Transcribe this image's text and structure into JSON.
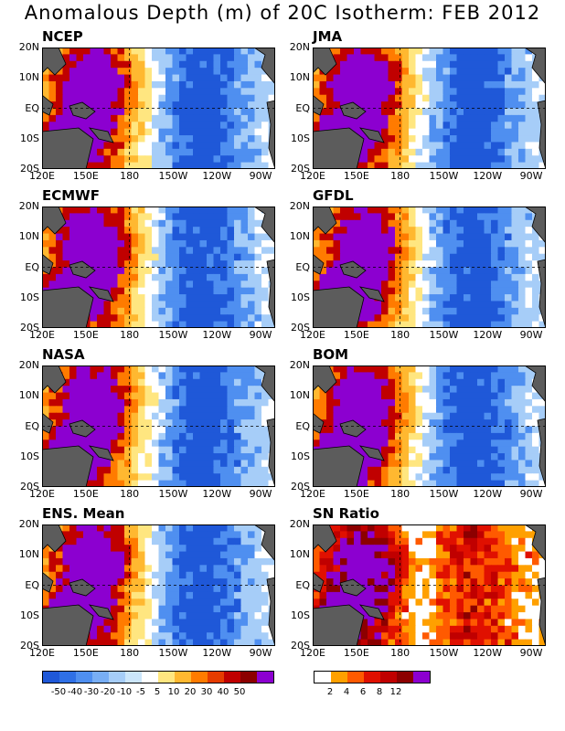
{
  "title": "Anomalous Depth (m) of 20C Isotherm: FEB 2012",
  "axes": {
    "lat_labels": [
      "20N",
      "10N",
      "EQ",
      "10S",
      "20S"
    ],
    "lon_labels": [
      "120E",
      "150E",
      "180",
      "150W",
      "120W",
      "90W"
    ]
  },
  "panels": [
    {
      "name": "NCEP"
    },
    {
      "name": "JMA"
    },
    {
      "name": "ECMWF"
    },
    {
      "name": "GFDL"
    },
    {
      "name": "NASA"
    },
    {
      "name": "BOM"
    },
    {
      "name": "ENS. Mean"
    },
    {
      "name": "SN Ratio"
    }
  ],
  "colorbar_left": {
    "labels": [
      "-50",
      "-40",
      "-30",
      "-20",
      "-10",
      "-5",
      "5",
      "10",
      "20",
      "30",
      "40",
      "50"
    ],
    "colors": [
      "#1f58d8",
      "#2f70e6",
      "#4f8ff0",
      "#78aef5",
      "#a6cdf8",
      "#cce6fb",
      "#ffffff",
      "#ffe680",
      "#ffb830",
      "#ff7b00",
      "#e63c00",
      "#c00000",
      "#8c0000",
      "#8c00d0"
    ]
  },
  "colorbar_right": {
    "labels": [
      "2",
      "4",
      "6",
      "8",
      "12"
    ],
    "colors": [
      "#ffffff",
      "#ffa000",
      "#ff5a00",
      "#e01000",
      "#c00000",
      "#8c0000",
      "#8c00d0"
    ]
  },
  "chart_data": {
    "type": "heatmap",
    "title": "Anomalous Depth (m) of 20C Isotherm: FEB 2012",
    "x_range": [
      "120E",
      "80W"
    ],
    "y_range": [
      "20S",
      "20N"
    ],
    "panels": [
      "NCEP",
      "JMA",
      "ECMWF",
      "GFDL",
      "NASA",
      "BOM",
      "ENS. Mean",
      "SN Ratio"
    ],
    "contour_levels_anomaly": [
      -50,
      -40,
      -30,
      -20,
      -10,
      -5,
      5,
      10,
      20,
      30,
      40,
      50
    ],
    "contour_levels_sn_ratio": [
      2,
      4,
      6,
      8,
      12
    ],
    "reference_lines": [
      "EQ",
      "180"
    ]
  }
}
